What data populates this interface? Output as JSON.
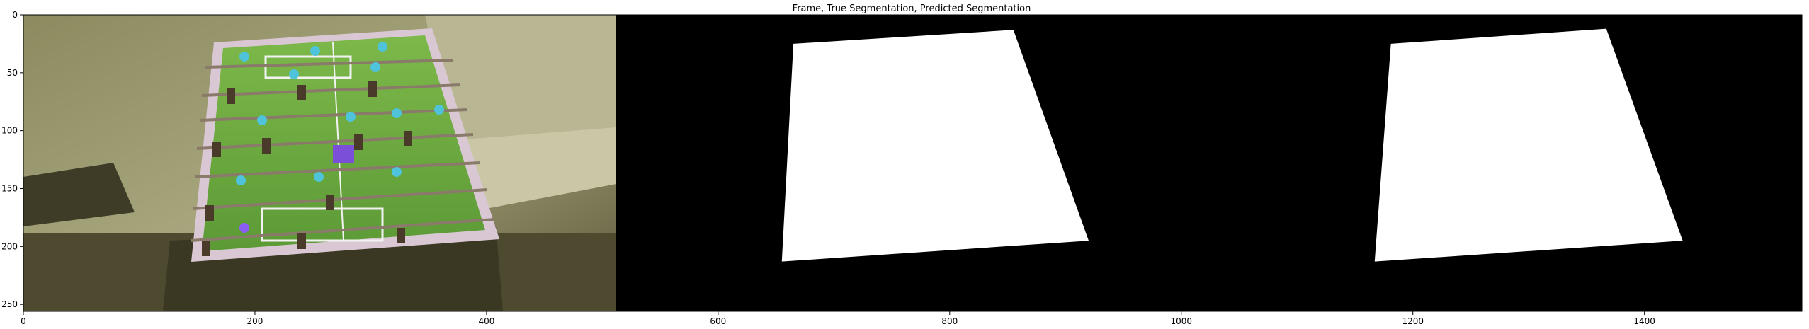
{
  "chart_data": {
    "type": "image",
    "title": "Frame, True Segmentation, Predicted Segmentation",
    "xlim": [
      0,
      1536
    ],
    "ylim": [
      256,
      0
    ],
    "xticks": [
      0,
      200,
      400,
      600,
      800,
      1000,
      1200,
      1400
    ],
    "yticks": [
      0,
      50,
      100,
      150,
      200,
      250
    ],
    "panels": [
      {
        "name": "Frame",
        "x_range": [
          0,
          512
        ],
        "content": "photo"
      },
      {
        "name": "True Segmentation",
        "x_range": [
          512,
          1024
        ],
        "content": "mask",
        "polygon": [
          [
            665,
            25
          ],
          [
            855,
            13
          ],
          [
            920,
            195
          ],
          [
            655,
            213
          ]
        ]
      },
      {
        "name": "Predicted Segmentation",
        "x_range": [
          1024,
          1536
        ],
        "content": "mask",
        "polygon": [
          [
            1181,
            25
          ],
          [
            1367,
            12
          ],
          [
            1433,
            195
          ],
          [
            1167,
            213
          ]
        ]
      }
    ],
    "colors": {
      "mask": "#ffffff",
      "background": "#000000",
      "field": "#6a9e3c",
      "table_frame": "#d9c8d4",
      "players_dark": "#4a3a2a",
      "players_light": "#4fc3d9"
    }
  }
}
